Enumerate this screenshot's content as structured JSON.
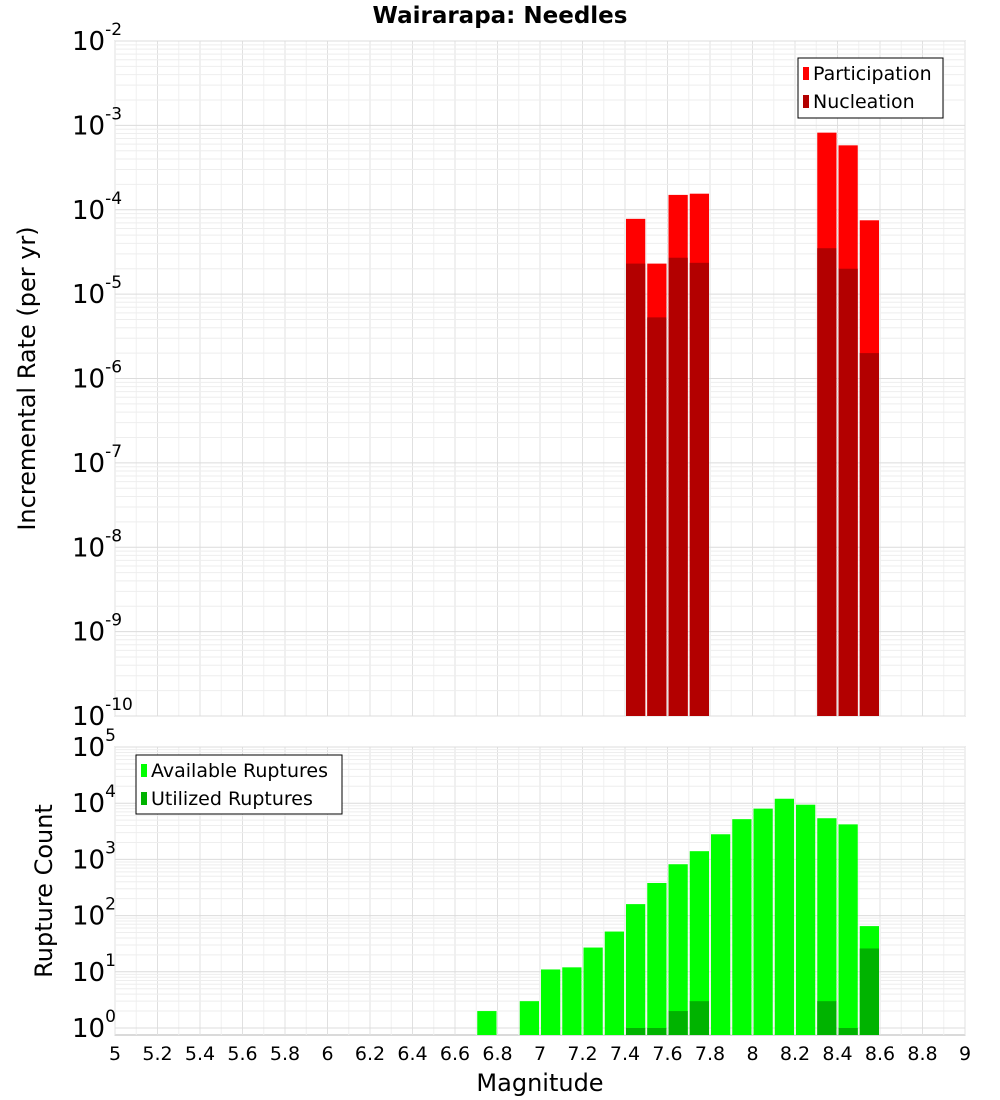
{
  "title": "Wairarapa: Needles",
  "x_axis": {
    "label": "Magnitude",
    "range": [
      5,
      9
    ],
    "ticks": [
      "5",
      "5.2",
      "5.4",
      "5.6",
      "5.8",
      "6",
      "6.2",
      "6.4",
      "6.6",
      "6.8",
      "7",
      "7.2",
      "7.4",
      "7.6",
      "7.8",
      "8",
      "8.2",
      "8.4",
      "8.6",
      "8.8",
      "9"
    ]
  },
  "chart_data": [
    {
      "type": "bar",
      "name": "rate-panel",
      "ylabel": "Incremental Rate (per yr)",
      "yscale": "log",
      "ylim": [
        1e-10,
        0.01
      ],
      "y_tick_exponents": [
        "-10",
        "-9",
        "-8",
        "-7",
        "-6",
        "-5",
        "-4",
        "-3",
        "-2"
      ],
      "bar_width": 0.1,
      "grid": true,
      "legend_position": "top-right",
      "series": [
        {
          "name": "Participation",
          "color": "#ff0000",
          "x": [
            7.45,
            7.55,
            7.65,
            7.75,
            8.35,
            8.45,
            8.55
          ],
          "values": [
            7.8e-05,
            2.3e-05,
            0.00015,
            0.000155,
            0.00082,
            0.00058,
            7.5e-05
          ]
        },
        {
          "name": "Nucleation",
          "color": "#b30000",
          "x": [
            7.45,
            7.55,
            7.65,
            7.75,
            8.35,
            8.45,
            8.55
          ],
          "values": [
            2.3e-05,
            5.3e-06,
            2.7e-05,
            2.35e-05,
            3.5e-05,
            2e-05,
            2e-06
          ]
        }
      ]
    },
    {
      "type": "bar",
      "name": "count-panel",
      "ylabel": "Rupture Count",
      "yscale": "log",
      "ylim": [
        0.75,
        100000.0
      ],
      "y_tick_exponents": [
        "0",
        "1",
        "2",
        "3",
        "4",
        "5"
      ],
      "bar_width": 0.1,
      "grid": true,
      "legend_position": "top-left",
      "series": [
        {
          "name": "Available Ruptures",
          "color": "#00ff00",
          "x": [
            6.75,
            6.95,
            7.05,
            7.15,
            7.25,
            7.35,
            7.45,
            7.55,
            7.65,
            7.75,
            7.85,
            7.95,
            8.05,
            8.15,
            8.25,
            8.35,
            8.45,
            8.55
          ],
          "values": [
            2,
            3,
            11,
            12,
            27,
            52,
            160,
            380,
            820,
            1400,
            2800,
            5200,
            8000,
            12000,
            9400,
            5400,
            4200,
            65
          ]
        },
        {
          "name": "Utilized Ruptures",
          "color": "#00b300",
          "x": [
            7.45,
            7.55,
            7.65,
            7.75,
            8.35,
            8.45,
            8.55
          ],
          "values": [
            1,
            1,
            2,
            3,
            3,
            1,
            26
          ]
        }
      ]
    }
  ]
}
